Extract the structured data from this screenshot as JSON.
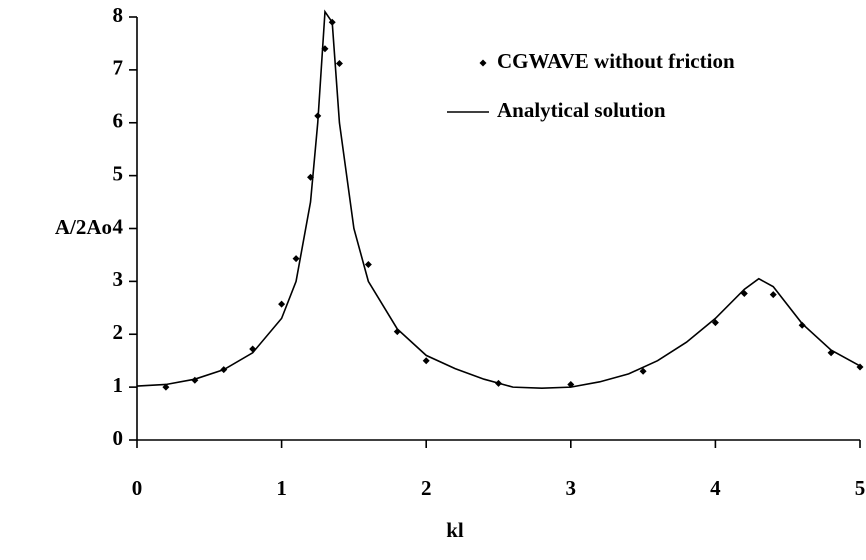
{
  "chart_data": {
    "type": "line",
    "x_label": "kl",
    "y_label": "A/2Ao",
    "xlim": [
      0,
      5
    ],
    "ylim": [
      0,
      8
    ],
    "xticks": [
      0,
      1,
      2,
      3,
      4,
      5
    ],
    "yticks": [
      0,
      1,
      2,
      3,
      4,
      5,
      6,
      7,
      8
    ],
    "grid": false,
    "legend": "upper right",
    "series": [
      {
        "name": "CGWAVE without friction",
        "type": "scatter",
        "color": "#000000",
        "x": [
          0.2,
          0.4,
          0.6,
          0.8,
          1.0,
          1.1,
          1.2,
          1.25,
          1.3,
          1.35,
          1.4,
          1.6,
          1.8,
          2.0,
          2.5,
          3.0,
          3.5,
          4.0,
          4.2,
          4.4,
          4.6,
          4.8,
          5.0
        ],
        "values": [
          1.0,
          1.13,
          1.33,
          1.72,
          2.57,
          3.43,
          4.97,
          6.13,
          7.4,
          7.9,
          7.12,
          3.32,
          2.05,
          1.5,
          1.07,
          1.05,
          1.3,
          2.22,
          2.77,
          2.75,
          2.17,
          1.65,
          1.38
        ]
      },
      {
        "name": "Analytical solution",
        "type": "line",
        "color": "#000000",
        "x": [
          0,
          0.2,
          0.4,
          0.6,
          0.8,
          1.0,
          1.1,
          1.2,
          1.25,
          1.3,
          1.35,
          1.4,
          1.5,
          1.6,
          1.8,
          2.0,
          2.2,
          2.4,
          2.6,
          2.8,
          3.0,
          3.2,
          3.4,
          3.6,
          3.8,
          4.0,
          4.2,
          4.3,
          4.4,
          4.6,
          4.8,
          5.0
        ],
        "values": [
          1.02,
          1.05,
          1.15,
          1.33,
          1.65,
          2.3,
          3.0,
          4.5,
          6.0,
          8.1,
          7.9,
          6.0,
          4.0,
          3.0,
          2.1,
          1.6,
          1.35,
          1.15,
          1.0,
          0.98,
          1.0,
          1.1,
          1.25,
          1.5,
          1.85,
          2.3,
          2.85,
          3.05,
          2.9,
          2.2,
          1.7,
          1.4
        ]
      }
    ]
  }
}
